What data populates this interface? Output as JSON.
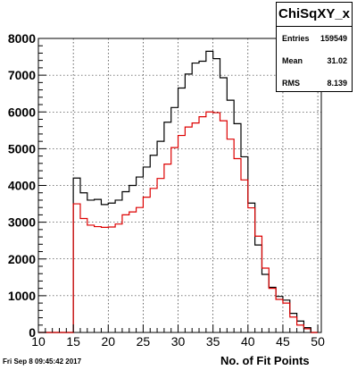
{
  "chart_data": {
    "type": "line",
    "hist_name": "ChiSqXY_x",
    "xlabel": "No. of Fit Points",
    "ylabel": "",
    "xlim": [
      10,
      50.5
    ],
    "ylim": [
      0,
      8000
    ],
    "x_ticks": [
      10,
      15,
      20,
      25,
      30,
      35,
      40,
      45,
      50
    ],
    "y_ticks": [
      0,
      1000,
      2000,
      3000,
      4000,
      5000,
      6000,
      7000,
      8000
    ],
    "grid": true,
    "bin_edges": [
      10,
      11,
      12,
      13,
      14,
      15,
      16,
      17,
      18,
      19,
      20,
      21,
      22,
      23,
      24,
      25,
      26,
      27,
      28,
      29,
      30,
      31,
      32,
      33,
      34,
      35,
      36,
      37,
      38,
      39,
      40,
      41,
      42,
      43,
      44,
      45,
      46,
      47,
      48,
      49,
      50
    ],
    "series": [
      {
        "color": "#000000",
        "values": [
          0,
          0,
          0,
          0,
          0,
          4200,
          3800,
          3600,
          3620,
          3480,
          3520,
          3600,
          3830,
          4000,
          4230,
          4500,
          4820,
          5200,
          5720,
          6120,
          6650,
          7030,
          7330,
          7380,
          7650,
          7450,
          6930,
          6320,
          5680,
          4780,
          3520,
          2380,
          1580,
          1230,
          980,
          880,
          520,
          310,
          130,
          0
        ]
      },
      {
        "color": "#dd0000",
        "values": [
          0,
          0,
          0,
          0,
          0,
          3500,
          3100,
          2920,
          2880,
          2860,
          2870,
          2950,
          3200,
          3280,
          3400,
          3680,
          3920,
          4190,
          4580,
          5030,
          5360,
          5590,
          5700,
          5870,
          6000,
          5980,
          5760,
          5260,
          4730,
          4150,
          3390,
          2620,
          1750,
          1200,
          900,
          800,
          420,
          200,
          100,
          0
        ]
      }
    ]
  },
  "stats": {
    "title": "ChiSqXY_x",
    "entries_label": "Entries",
    "entries_value": "159549",
    "mean_label": "Mean",
    "mean_value": "31.02",
    "rms_label": "RMS",
    "rms_value": "8.139"
  },
  "timestamp": "Fri Sep  8 09:45:42 2017"
}
